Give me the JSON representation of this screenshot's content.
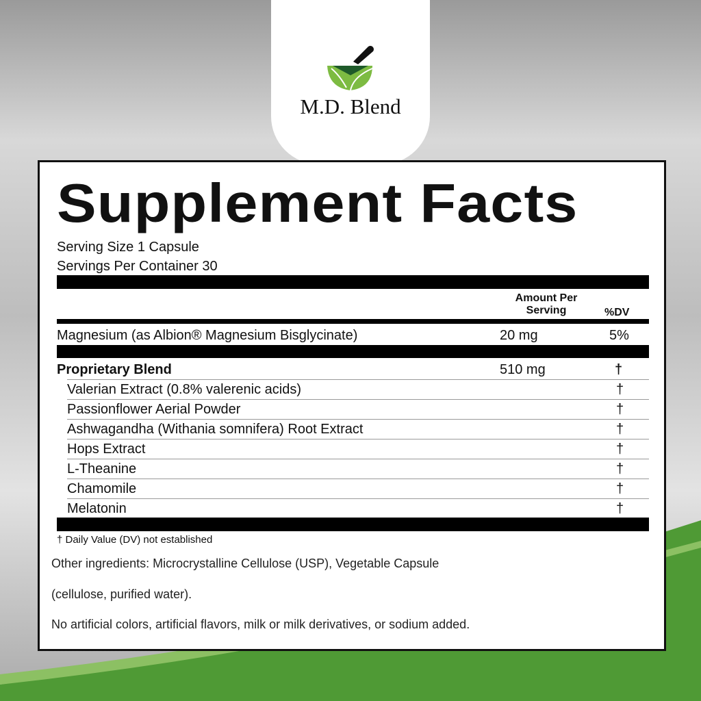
{
  "brand": {
    "name": "M.D. Blend",
    "logo_icon": "mortar-pestle-leaf-icon",
    "colors": {
      "leaf_light": "#7dbb42",
      "leaf_dark": "#1e5a2a",
      "swoosh": "#4f9a35"
    }
  },
  "label": {
    "title": "Supplement Facts",
    "serving_size": "Serving Size 1 Capsule",
    "servings_per_container": "Servings Per Container 30",
    "header": {
      "amount_line1": "Amount Per",
      "amount_line2": "Serving",
      "dv": "%DV"
    },
    "rows": [
      {
        "name": "Magnesium (as Albion® Magnesium Bisglycinate)",
        "amount": "20 mg",
        "dv": "5%"
      }
    ],
    "blend": {
      "name": "Proprietary Blend",
      "amount": "510 mg",
      "dv": "†",
      "ingredients": [
        {
          "name": "Valerian Extract (0.8% valerenic acids)",
          "dv": "†"
        },
        {
          "name": "Passionflower Aerial Powder",
          "dv": "†"
        },
        {
          "name": "Ashwagandha (Withania somnifera) Root Extract",
          "dv": "†"
        },
        {
          "name": "Hops Extract",
          "dv": "†"
        },
        {
          "name": "L-Theanine",
          "dv": "†"
        },
        {
          "name": "Chamomile",
          "dv": "†"
        },
        {
          "name": "Melatonin",
          "dv": "†"
        }
      ]
    },
    "footnote": "† Daily Value (DV) not established",
    "other_ingredients_1": "Other ingredients: Microcrystalline Cellulose (USP), Vegetable Capsule",
    "other_ingredients_2": "(cellulose, purified water).",
    "disclaimer": "No artificial colors, artificial flavors, milk or milk derivatives, or sodium added."
  }
}
